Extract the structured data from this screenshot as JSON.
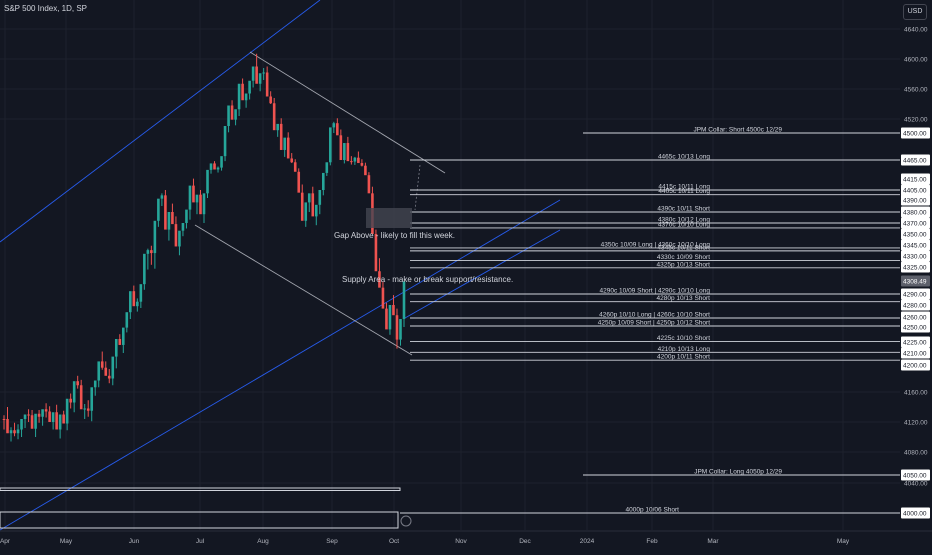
{
  "header": {
    "symbol": "S&P 500 Index, 1D, SP",
    "currency": "USD"
  },
  "chart_data": {
    "type": "candlestick",
    "y_ticks": [
      4640,
      4600,
      4560,
      4520,
      4160,
      4120,
      4080,
      4040
    ],
    "x_ticks": [
      "Apr",
      "May",
      "Jun",
      "Jul",
      "Aug",
      "Sep",
      "Oct",
      "Nov",
      "Dec",
      "2024",
      "Feb",
      "Mar",
      "May"
    ],
    "price_axis_labels": [
      {
        "value": "4500.00",
        "price": 4500
      },
      {
        "value": "4465.00",
        "price": 4465
      },
      {
        "value": "4415.00",
        "price": 4415
      },
      {
        "value": "4405.00",
        "price": 4405
      },
      {
        "value": "4390.00",
        "price": 4390
      },
      {
        "value": "4380.00",
        "price": 4380
      },
      {
        "value": "4370.00",
        "price": 4370
      },
      {
        "value": "4350.00",
        "price": 4350
      },
      {
        "value": "4345.00",
        "price": 4345
      },
      {
        "value": "4330.00",
        "price": 4330
      },
      {
        "value": "4325.00",
        "price": 4325
      },
      {
        "value": "4290.00",
        "price": 4290
      },
      {
        "value": "4280.00",
        "price": 4280
      },
      {
        "value": "4260.00",
        "price": 4260
      },
      {
        "value": "4250.00",
        "price": 4250
      },
      {
        "value": "4225.00",
        "price": 4225
      },
      {
        "value": "4210.00",
        "price": 4210
      },
      {
        "value": "4200.00",
        "price": 4200
      },
      {
        "value": "4050.00",
        "price": 4050
      },
      {
        "value": "4000.00",
        "price": 4000
      }
    ],
    "last_price": {
      "value": "4308.49",
      "price": 4308.49
    },
    "levels": [
      {
        "price": 4500,
        "label": "JPM Collar: Short 4500c 12/29"
      },
      {
        "price": 4465,
        "label": "4465c 10/13 Long"
      },
      {
        "price": 4405,
        "label": "4415c 10/11 Long"
      },
      {
        "price": 4398,
        "label": "4405c 10/11 Long"
      },
      {
        "price": 4380,
        "label": "4390c 10/11 Short"
      },
      {
        "price": 4370,
        "label": "4380c 10/12 Long"
      },
      {
        "price": 4361,
        "label": "4370c 10/10 Long"
      },
      {
        "price": 4341,
        "label": "4350c 10/09 Long | 4360c 10/10 Long"
      },
      {
        "price": 4337,
        "label": "4345c 10/11 Short"
      },
      {
        "price": 4328,
        "label": "4330c 10/09 Short"
      },
      {
        "price": 4324,
        "label": "4325p 10/13 Short"
      },
      {
        "price": 4290,
        "label": "4290c 10/09 Short | 4290c 10/10 Long"
      },
      {
        "price": 4283,
        "label": "4280p 10/13 Short"
      },
      {
        "price": 4259,
        "label": "4260p 10/10 Long | 4260c 10/10 Short"
      },
      {
        "price": 4251,
        "label": "4250p 10/09 Short | 4250p 10/12 Short"
      },
      {
        "price": 4226,
        "label": "4225c 10/10 Short"
      },
      {
        "price": 4211,
        "label": "4210p 10/13 Long"
      },
      {
        "price": 4204,
        "label": "4200p 10/11 Short"
      },
      {
        "price": 4050,
        "label": "JPM Collar: Long 4050p 12/29"
      },
      {
        "price": 4000,
        "label": "4000p 10/06 Short"
      }
    ],
    "annotations": [
      {
        "text": "Gap Above - likely to fill this week.",
        "price": 4350
      },
      {
        "text": "Supply Area - make or break support/resistance.",
        "price": 4298
      }
    ],
    "candles": [
      [
        4124,
        4129,
        4110,
        4123
      ],
      [
        4124,
        4140,
        4118,
        4105
      ],
      [
        4105,
        4113,
        4094,
        4109
      ],
      [
        4109,
        4119,
        4101,
        4105
      ],
      [
        4105,
        4117,
        4097,
        4110
      ],
      [
        4110,
        4122,
        4100,
        4124
      ],
      [
        4124,
        4130,
        4112,
        4130
      ],
      [
        4130,
        4137,
        4120,
        4129
      ],
      [
        4129,
        4136,
        4116,
        4111
      ],
      [
        4111,
        4121,
        4100,
        4131
      ],
      [
        4131,
        4136,
        4119,
        4127
      ],
      [
        4127,
        4134,
        4115,
        4137
      ],
      [
        4137,
        4145,
        4126,
        4134
      ],
      [
        4134,
        4141,
        4121,
        4120
      ],
      [
        4120,
        4129,
        4110,
        4133
      ],
      [
        4133,
        4143,
        4124,
        4110
      ],
      [
        4110,
        4120,
        4098,
        4130
      ],
      [
        4130,
        4135,
        4118,
        4118
      ],
      [
        4118,
        4127,
        4109,
        4151
      ],
      [
        4151,
        4158,
        4138,
        4146
      ],
      [
        4146,
        4154,
        4133,
        4176
      ],
      [
        4176,
        4184,
        4165,
        4170
      ],
      [
        4170,
        4178,
        4163,
        4137
      ],
      [
        4137,
        4144,
        4124,
        4138
      ],
      [
        4138,
        4149,
        4127,
        4135
      ],
      [
        4135,
        4143,
        4121,
        4167
      ],
      [
        4167,
        4172,
        4155,
        4177
      ],
      [
        4177,
        4186,
        4167,
        4203
      ],
      [
        4203,
        4212,
        4193,
        4196
      ],
      [
        4196,
        4203,
        4190,
        4184
      ],
      [
        4184,
        4194,
        4173,
        4180
      ],
      [
        4180,
        4189,
        4170,
        4207
      ],
      [
        4207,
        4216,
        4195,
        4230
      ],
      [
        4230,
        4238,
        4221,
        4221
      ],
      [
        4221,
        4227,
        4210,
        4249
      ],
      [
        4249,
        4257,
        4241,
        4268
      ],
      [
        4268,
        4276,
        4258,
        4294
      ],
      [
        4294,
        4302,
        4285,
        4278
      ],
      [
        4278,
        4286,
        4269,
        4283
      ],
      [
        4283,
        4291,
        4275,
        4304
      ],
      [
        4304,
        4313,
        4296,
        4333
      ],
      [
        4333,
        4340,
        4322,
        4338
      ],
      [
        4338,
        4344,
        4326,
        4334
      ],
      [
        4334,
        4340,
        4323,
        4372
      ],
      [
        4372,
        4380,
        4363,
        4392
      ],
      [
        4392,
        4400,
        4385,
        4397
      ],
      [
        4397,
        4405,
        4389,
        4358
      ],
      [
        4358,
        4366,
        4347,
        4380
      ],
      [
        4380,
        4387,
        4370,
        4368
      ],
      [
        4368,
        4376,
        4359,
        4343
      ],
      [
        4343,
        4351,
        4331,
        4356
      ],
      [
        4356,
        4366,
        4349,
        4370
      ],
      [
        4370,
        4378,
        4360,
        4382
      ],
      [
        4382,
        4390,
        4373,
        4409
      ],
      [
        4409,
        4416,
        4400,
        4388
      ],
      [
        4388,
        4395,
        4378,
        4398
      ],
      [
        4398,
        4405,
        4390,
        4378
      ],
      [
        4378,
        4386,
        4370,
        4400
      ],
      [
        4400,
        4410,
        4393,
        4439
      ],
      [
        4439,
        4447,
        4429,
        4456
      ],
      [
        4456,
        4462,
        4444,
        4440
      ],
      [
        4440,
        4448,
        4432,
        4445
      ],
      [
        4445,
        4455,
        4437,
        4470
      ],
      [
        4470,
        4478,
        4462,
        4510
      ],
      [
        4510,
        4520,
        4501,
        4538
      ],
      [
        4538,
        4545,
        4528,
        4519
      ],
      [
        4519,
        4527,
        4511,
        4533
      ],
      [
        4533,
        4541,
        4524,
        4567
      ],
      [
        4567,
        4574,
        4556,
        4545
      ],
      [
        4545,
        4553,
        4535,
        4554
      ],
      [
        4554,
        4561,
        4546,
        4571
      ],
      [
        4571,
        4579,
        4562,
        4590
      ],
      [
        4590,
        4607,
        4580,
        4567
      ],
      [
        4567,
        4574,
        4557,
        4581
      ],
      [
        4581,
        4588,
        4572,
        4582
      ],
      [
        4582,
        4590,
        4574,
        4550
      ],
      [
        4550,
        4557,
        4540,
        4541
      ],
      [
        4541,
        4548,
        4530,
        4504
      ],
      [
        4504,
        4512,
        4495,
        4513
      ],
      [
        4513,
        4521,
        4505,
        4478
      ],
      [
        4478,
        4486,
        4469,
        4494
      ],
      [
        4494,
        4501,
        4485,
        4467
      ],
      [
        4467,
        4474,
        4457,
        4459
      ],
      [
        4459,
        4466,
        4448,
        4434
      ],
      [
        4434,
        4443,
        4426,
        4401
      ],
      [
        4401,
        4410,
        4392,
        4372
      ],
      [
        4372,
        4381,
        4363,
        4388
      ],
      [
        4388,
        4396,
        4380,
        4400
      ],
      [
        4400,
        4408,
        4392,
        4376
      ],
      [
        4376,
        4384,
        4366,
        4386
      ],
      [
        4386,
        4395,
        4378,
        4405
      ],
      [
        4405,
        4414,
        4397,
        4431
      ],
      [
        4431,
        4439,
        4423,
        4459
      ],
      [
        4459,
        4468,
        4451,
        4508
      ],
      [
        4508,
        4516,
        4500,
        4514
      ],
      [
        4514,
        4521,
        4505,
        4497
      ],
      [
        4497,
        4505,
        4488,
        4465
      ],
      [
        4465,
        4473,
        4456,
        4487
      ],
      [
        4487,
        4495,
        4479,
        4462
      ],
      [
        4462,
        4470,
        4453,
        4461
      ],
      [
        4461,
        4469,
        4452,
        4468
      ],
      [
        4468,
        4476,
        4459,
        4457
      ],
      [
        4457,
        4466,
        4448,
        4450
      ],
      [
        4450,
        4458,
        4440,
        4425
      ],
      [
        4425,
        4433,
        4417,
        4400
      ],
      [
        4400,
        4408,
        4391,
        4350
      ],
      [
        4350,
        4358,
        4341,
        4320
      ],
      [
        4320,
        4329,
        4312,
        4299
      ],
      [
        4299,
        4308,
        4290,
        4274
      ],
      [
        4274,
        4282,
        4265,
        4246
      ],
      [
        4246,
        4254,
        4237,
        4280
      ],
      [
        4280,
        4289,
        4272,
        4263
      ],
      [
        4263,
        4274,
        4216,
        4229
      ],
      [
        4229,
        4237,
        4220,
        4258
      ],
      [
        4258,
        4267,
        4250,
        4308
      ]
    ]
  }
}
